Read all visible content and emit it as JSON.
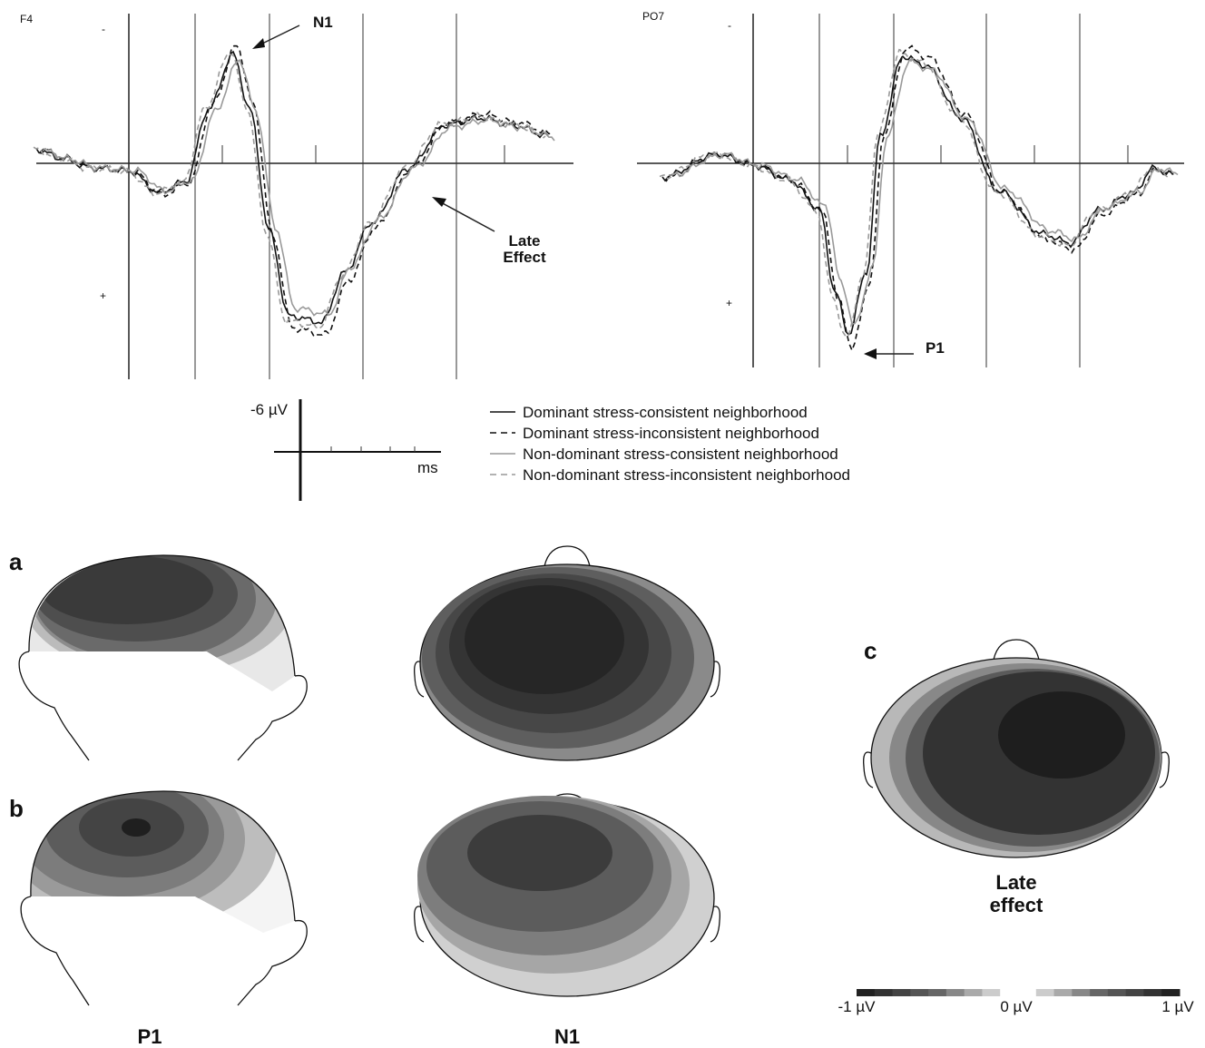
{
  "panels": [
    {
      "electrode": "F4",
      "neg_label": "-",
      "pos_label": "+",
      "annotations": [
        "N1",
        "Late",
        "Effect"
      ]
    },
    {
      "electrode": "PO7",
      "neg_label": "-",
      "pos_label": "+",
      "annotations": [
        "P1"
      ]
    }
  ],
  "scale_bar": {
    "amplitude": "-6 µV",
    "time": "ms"
  },
  "legend": [
    "Dominant stress-consistent neighborhood",
    "Dominant stress-inconsistent neighborhood",
    "Non-dominant stress-consistent neighborhood",
    "Non-dominant stress-inconsistent neighborhood"
  ],
  "topography": {
    "row_labels": [
      "a",
      "b",
      "c"
    ],
    "captions": [
      "P1",
      "N1",
      "Late",
      "effect"
    ],
    "colorbar": [
      "-1 µV",
      "0 µV",
      "1 µV"
    ]
  }
}
